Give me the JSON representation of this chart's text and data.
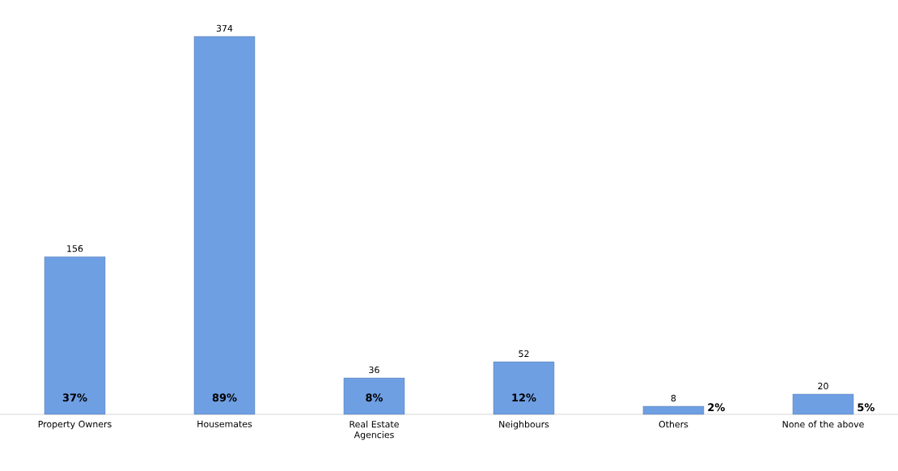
{
  "chart_data": {
    "type": "bar",
    "categories": [
      "Property Owners",
      "Housemates",
      "Real Estate Agencies",
      "Neighbours",
      "Others",
      "None of the above"
    ],
    "values": [
      156,
      374,
      36,
      52,
      8,
      20
    ],
    "color": "#6f9fe3",
    "data_labels": true,
    "annotations": [
      "37%",
      "89%",
      "8%",
      "12%",
      "2%",
      "5%"
    ]
  }
}
